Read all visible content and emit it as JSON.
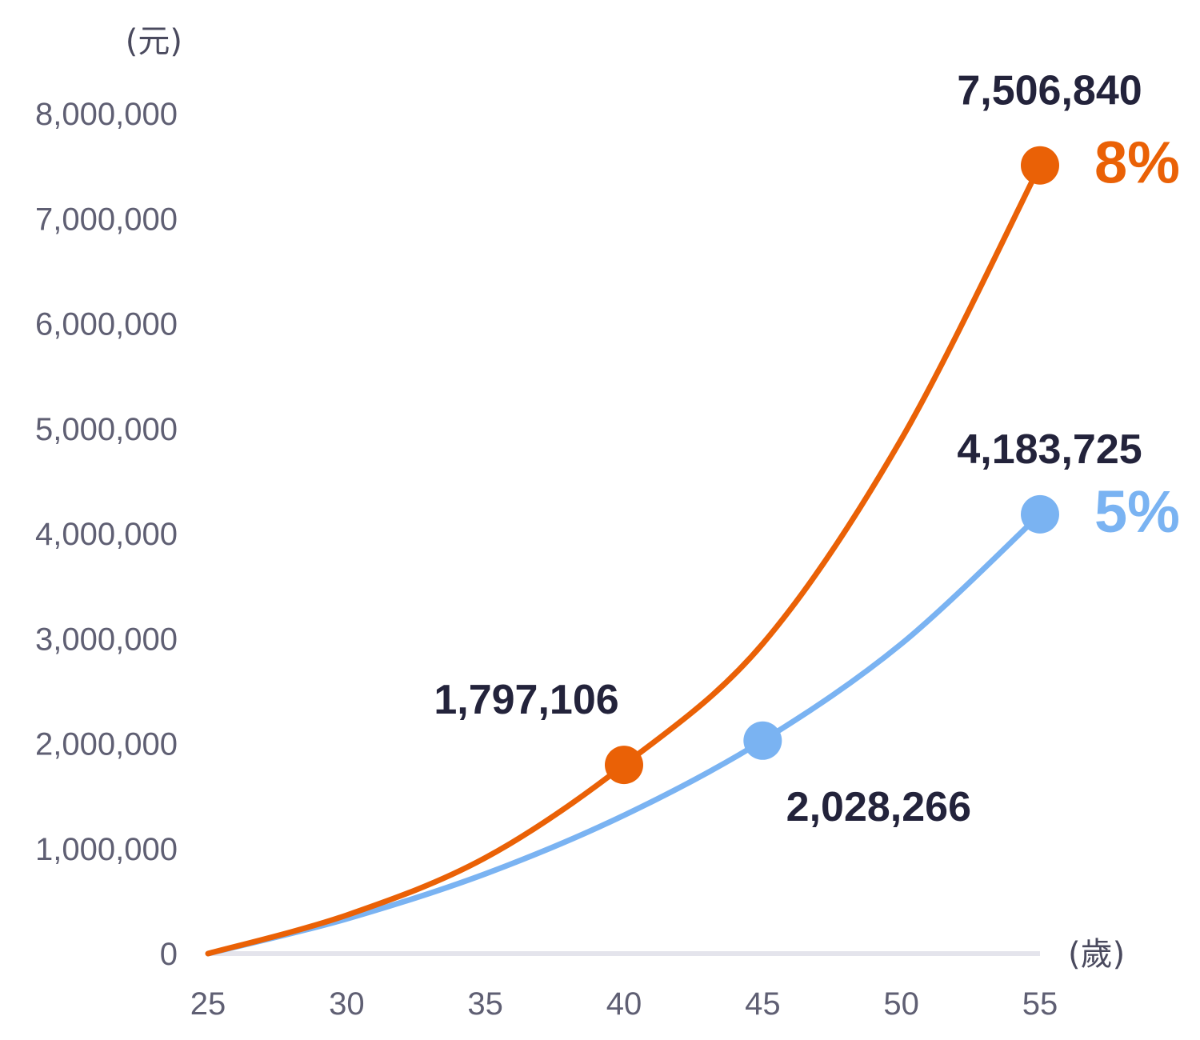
{
  "chart_data": {
    "type": "line",
    "y_unit": "(元)",
    "x_unit": "(歲)",
    "x_ticks": [
      25,
      30,
      35,
      40,
      45,
      50,
      55
    ],
    "y_ticks": [
      "0",
      "1,000,000",
      "2,000,000",
      "3,000,000",
      "4,000,000",
      "5,000,000",
      "6,000,000",
      "7,000,000",
      "8,000,000"
    ],
    "xlim": [
      25,
      55
    ],
    "ylim": [
      0,
      8000000
    ],
    "grid": false,
    "series": [
      {
        "name": "8%",
        "color": "#ea6106",
        "x": [
          25,
          30,
          35,
          40,
          45,
          50,
          55
        ],
        "values": [
          0,
          366000,
          913000,
          1797106,
          2950000,
          4900000,
          7506840
        ],
        "markers": [
          {
            "x": 40,
            "y": 1797106,
            "label": "1,797,106"
          },
          {
            "x": 55,
            "y": 7506840,
            "label": "7,506,840"
          }
        ]
      },
      {
        "name": "5%",
        "color": "#7ab3f2",
        "x": [
          25,
          30,
          35,
          40,
          45,
          50,
          55
        ],
        "values": [
          0,
          331000,
          760000,
          1317000,
          2028266,
          2950000,
          4183725
        ],
        "markers": [
          {
            "x": 45,
            "y": 2028266,
            "label": "2,028,266"
          },
          {
            "x": 55,
            "y": 4183725,
            "label": "4,183,725"
          }
        ]
      }
    ]
  }
}
